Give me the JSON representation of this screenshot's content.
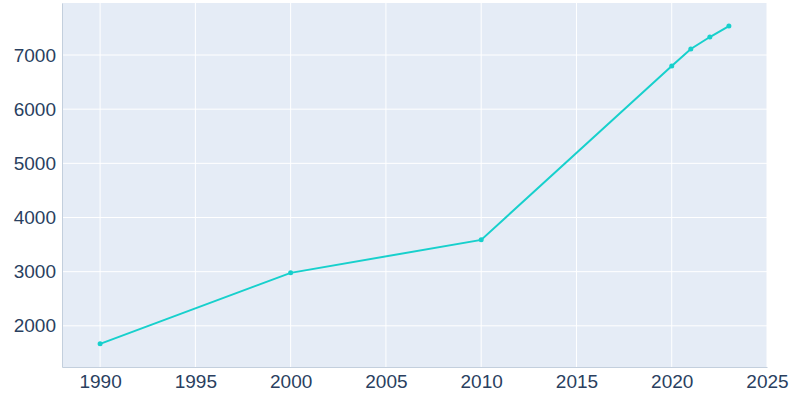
{
  "chart_data": {
    "type": "line",
    "x": [
      1990,
      2000,
      2010,
      2020,
      2021,
      2022,
      2023
    ],
    "values": [
      1668,
      2978,
      3587,
      6797,
      7111,
      7332,
      7535
    ],
    "color": "#17d0cc",
    "marker": "circle",
    "xlim": [
      1988,
      2025
    ],
    "xticks": [
      1990,
      1995,
      2000,
      2005,
      2010,
      2015,
      2020,
      2025
    ],
    "ylim": [
      1240,
      7960
    ],
    "yticks": [
      2000,
      3000,
      4000,
      5000,
      6000,
      7000
    ],
    "grid": true
  }
}
